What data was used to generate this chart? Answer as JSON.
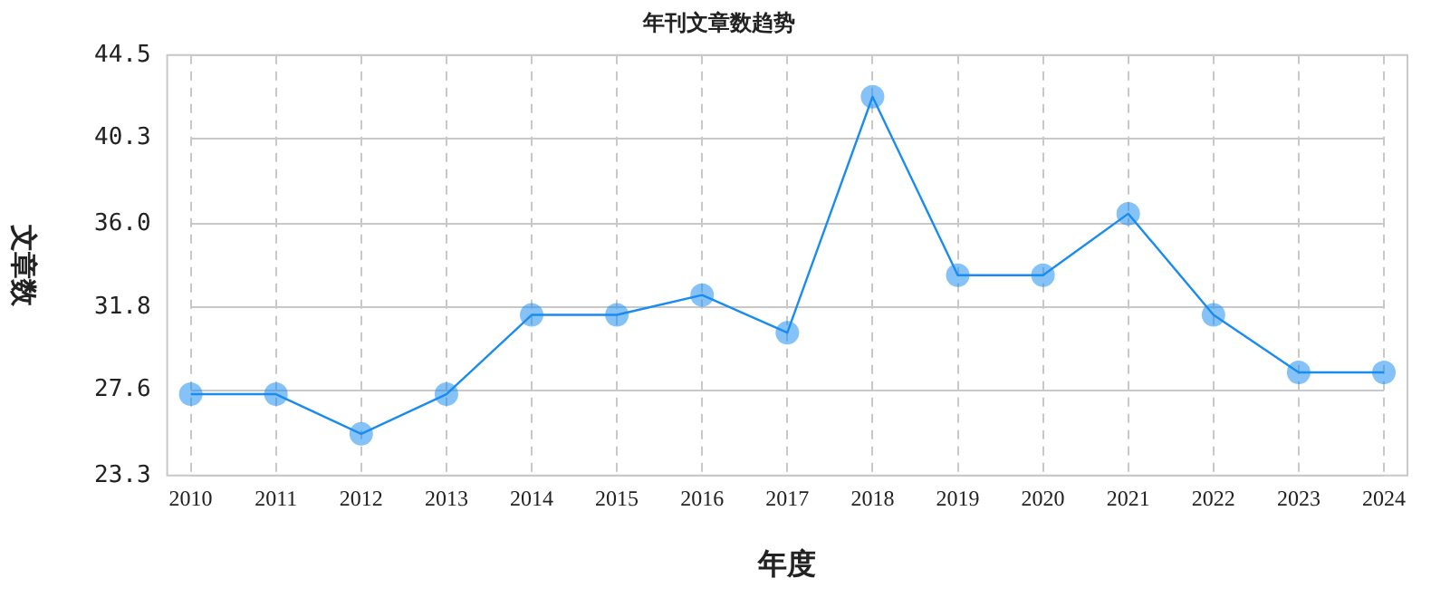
{
  "chart_data": {
    "type": "line",
    "title": "年刊文章数趋势",
    "xlabel": "年度",
    "ylabel": "文章数",
    "categories": [
      "2010",
      "2011",
      "2012",
      "2013",
      "2014",
      "2015",
      "2016",
      "2017",
      "2018",
      "2019",
      "2020",
      "2021",
      "2022",
      "2023",
      "2024"
    ],
    "series": [
      {
        "color": "#1a8cf0",
        "values": [
          27.4,
          27.4,
          25.4,
          27.4,
          31.4,
          31.4,
          32.4,
          30.5,
          42.4,
          33.4,
          33.4,
          36.5,
          31.4,
          28.5,
          28.5
        ]
      }
    ],
    "ylim": [
      23.3,
      44.5
    ],
    "yticks": [
      23.3,
      27.6,
      31.8,
      {
        "value": 36,
        "label": "36.0"
      },
      40.3,
      44.5
    ],
    "grid": true,
    "marker": "circle",
    "line_style": "solid",
    "legend": false
  }
}
